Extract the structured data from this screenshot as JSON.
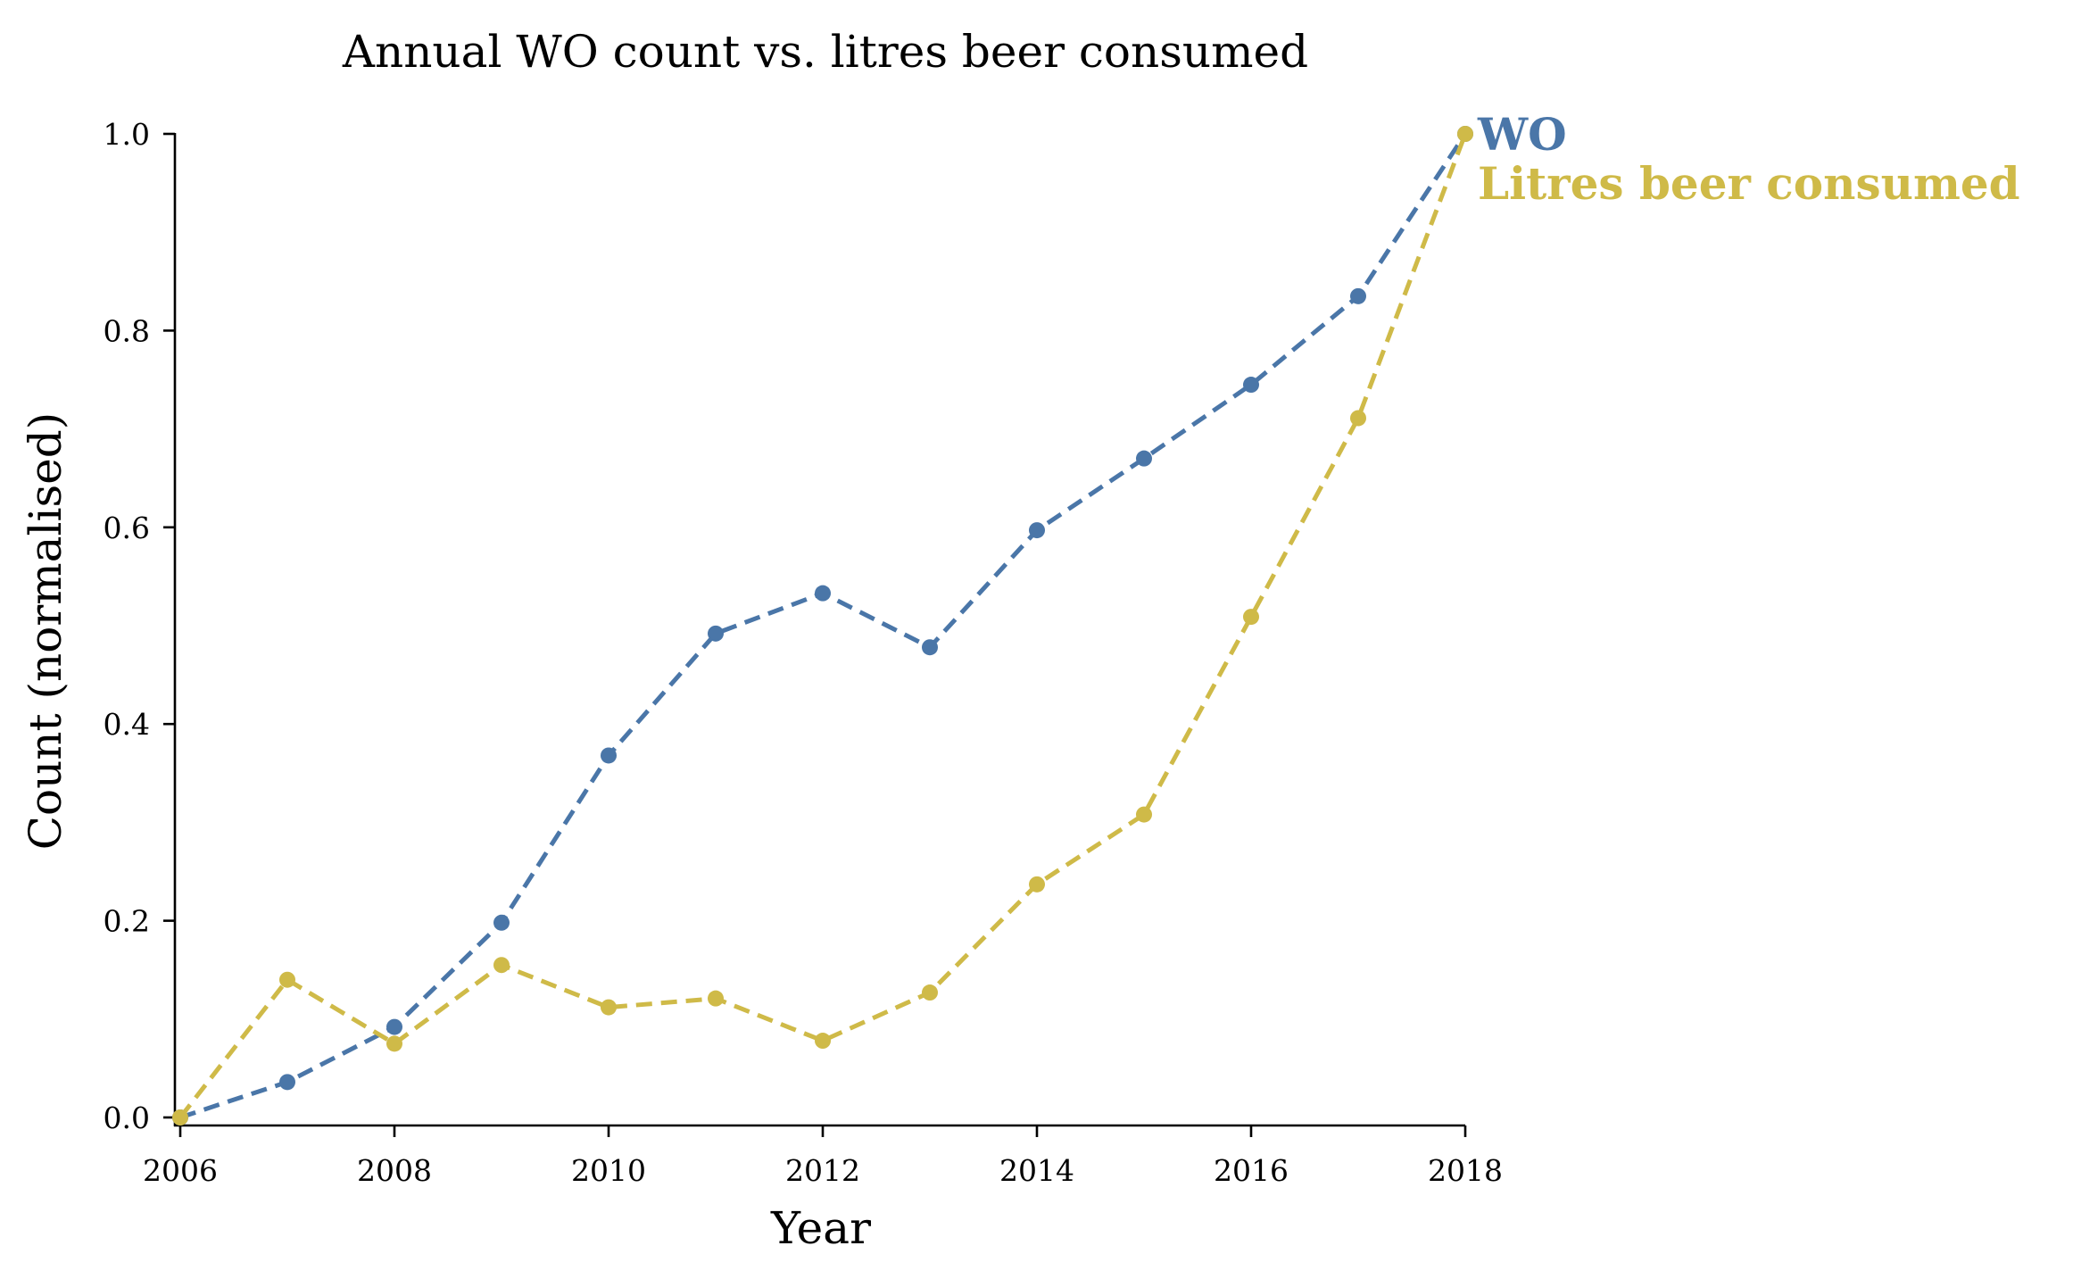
{
  "chart_data": {
    "type": "line",
    "title": "Annual WO count vs. litres beer consumed",
    "xlabel": "Year",
    "ylabel": "Count (normalised)",
    "x": [
      2006,
      2007,
      2008,
      2009,
      2010,
      2011,
      2012,
      2013,
      2014,
      2015,
      2016,
      2017,
      2018
    ],
    "xlim": [
      2006,
      2018
    ],
    "ylim": [
      0,
      1
    ],
    "xticks": [
      "2006",
      "2008",
      "2010",
      "2012",
      "2014",
      "2016",
      "2018"
    ],
    "yticks": [
      "0.0",
      "0.2",
      "0.4",
      "0.6",
      "0.8",
      "1.0"
    ],
    "grid": false,
    "legend": "direct labels at line ends",
    "series": [
      {
        "name": "WO",
        "color": "#4a76a8",
        "values": [
          0.0,
          0.036,
          0.092,
          0.198,
          0.368,
          0.492,
          0.533,
          0.478,
          0.597,
          0.67,
          0.745,
          0.835,
          1.0
        ]
      },
      {
        "name": "Litres beer consumed",
        "color": "#cfba48",
        "values": [
          0.0,
          0.14,
          0.075,
          0.155,
          0.112,
          0.121,
          0.078,
          0.127,
          0.237,
          0.308,
          0.509,
          0.711,
          1.0
        ]
      }
    ]
  }
}
